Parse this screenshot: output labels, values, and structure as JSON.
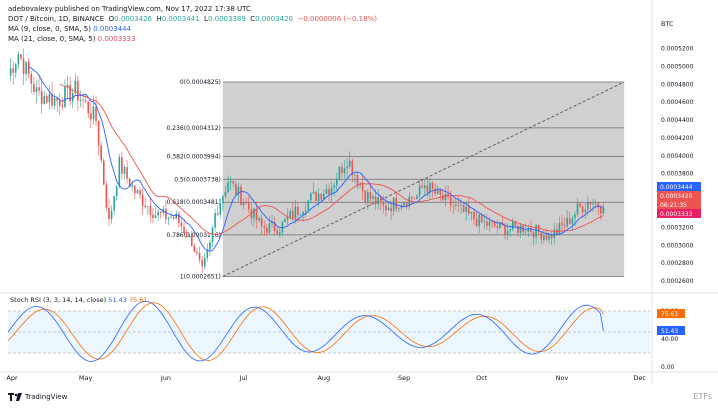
{
  "header": {
    "published": "adebovalexy published on TradingView.com, Nov 17, 2022 17:38 UTC",
    "symbol": "DOT / Bitcoin, 1D, BINANCE",
    "o_label": "O",
    "o_value": "0.0003426",
    "h_label": "H",
    "h_value": "0.0003441",
    "l_label": "L",
    "l_value": "0.0003389",
    "c_label": "C",
    "c_value": "0.0003420",
    "change": "−0.0000006 (−0.18%)",
    "ma1_label": "MA (9, close, 0, SMA, 5)",
    "ma1_value": "0.0003444",
    "ma2_label": "MA (21, close, 0, SMA, 5)",
    "ma2_value": "0.0003333"
  },
  "axis": {
    "currency": "BTC",
    "ticks": [
      "0.0005200",
      "0.0005000",
      "0.0004800",
      "0.0004600",
      "0.0004400",
      "0.0004200",
      "0.0004000",
      "0.0003800",
      "0.0003600",
      "0.0003200",
      "0.0003000",
      "0.0002800",
      "0.0002600"
    ],
    "tags": [
      {
        "text": "0.0003444",
        "color": "#2962ff"
      },
      {
        "text": "0.0003420",
        "color": "#ef5350"
      },
      {
        "text": "06:21:35",
        "color": "#ef5350"
      },
      {
        "text": "0.0003333",
        "color": "#e91e63"
      }
    ]
  },
  "fib": [
    {
      "label": "0(0.0004825)",
      "price": 0.0004825
    },
    {
      "label": "0.236(0.0004312)",
      "price": 0.0004312
    },
    {
      "label": "0.382(0.0003994)",
      "price": 0.0003994
    },
    {
      "label": "0.5(0.0003738)",
      "price": 0.0003738
    },
    {
      "label": "0.618(0.0003481)",
      "price": 0.0003481
    },
    {
      "label": "0.786(0.0003116)",
      "price": 0.0003116
    },
    {
      "label": "1(0.0002651)",
      "price": 0.0002651
    }
  ],
  "stoch": {
    "label": "Stoch RSI (3, 3, 14, 14, close)",
    "k_value": "51.43",
    "d_value": "75.61",
    "ticks": [
      "80.00",
      "40.00",
      "0.00"
    ],
    "tags": [
      {
        "text": "75.61",
        "color": "#ff6d00"
      },
      {
        "text": "51.43",
        "color": "#2962ff"
      }
    ]
  },
  "time_axis": [
    "Apr",
    "May",
    "Jun",
    "Jul",
    "Aug",
    "Sep",
    "Oct",
    "Nov",
    "Dec"
  ],
  "footer": {
    "brand": "TradingView"
  },
  "watermark": "ETFs",
  "colors": {
    "up": "#26a69a",
    "down": "#ef5350",
    "ma9": "#2962ff",
    "ma21": "#ef5350",
    "fib_zone": "#d0d0d0"
  },
  "chart_data": {
    "type": "candlestick",
    "y_unit": "BTC",
    "ylim": [
      0.00025,
      0.000525
    ],
    "x_range": [
      "2022-04-01",
      "2022-12-05"
    ],
    "fib_zone": {
      "from": "2022-06-23",
      "to": "2022-11-25",
      "top": 0.0004825,
      "bottom": 0.0002651
    },
    "trendline": {
      "from": [
        "2022-06-23",
        0.0002651
      ],
      "to": [
        "2022-11-25",
        0.0004825
      ]
    },
    "price_keypoints": [
      [
        "2022-04-01",
        0.00049
      ],
      [
        "2022-04-05",
        0.000515
      ],
      [
        "2022-04-12",
        0.00047
      ],
      [
        "2022-04-20",
        0.000462
      ],
      [
        "2022-04-27",
        0.000473
      ],
      [
        "2022-05-05",
        0.00044
      ],
      [
        "2022-05-10",
        0.000325
      ],
      [
        "2022-05-14",
        0.00039
      ],
      [
        "2022-05-20",
        0.00036
      ],
      [
        "2022-05-28",
        0.000335
      ],
      [
        "2022-06-05",
        0.00033
      ],
      [
        "2022-06-11",
        0.000305
      ],
      [
        "2022-06-15",
        0.00027
      ],
      [
        "2022-06-18",
        0.0003
      ],
      [
        "2022-06-20",
        0.000335
      ],
      [
        "2022-06-25",
        0.000372
      ],
      [
        "2022-07-01",
        0.00035
      ],
      [
        "2022-07-08",
        0.00032
      ],
      [
        "2022-07-15",
        0.00032
      ],
      [
        "2022-07-20",
        0.000335
      ],
      [
        "2022-07-27",
        0.000352
      ],
      [
        "2022-08-04",
        0.000367
      ],
      [
        "2022-08-10",
        0.000398
      ],
      [
        "2022-08-17",
        0.000357
      ],
      [
        "2022-08-24",
        0.000342
      ],
      [
        "2022-08-31",
        0.00035
      ],
      [
        "2022-09-06",
        0.000355
      ],
      [
        "2022-09-09",
        0.000368
      ],
      [
        "2022-09-14",
        0.000355
      ],
      [
        "2022-09-22",
        0.00034
      ],
      [
        "2022-10-01",
        0.000325
      ],
      [
        "2022-10-10",
        0.000318
      ],
      [
        "2022-10-18",
        0.00032
      ],
      [
        "2022-10-27",
        0.00031
      ],
      [
        "2022-11-03",
        0.000325
      ],
      [
        "2022-11-07",
        0.00034
      ],
      [
        "2022-11-12",
        0.00035
      ],
      [
        "2022-11-17",
        0.000342
      ]
    ],
    "stoch_k_last": 51.43,
    "stoch_d_last": 75.61
  }
}
